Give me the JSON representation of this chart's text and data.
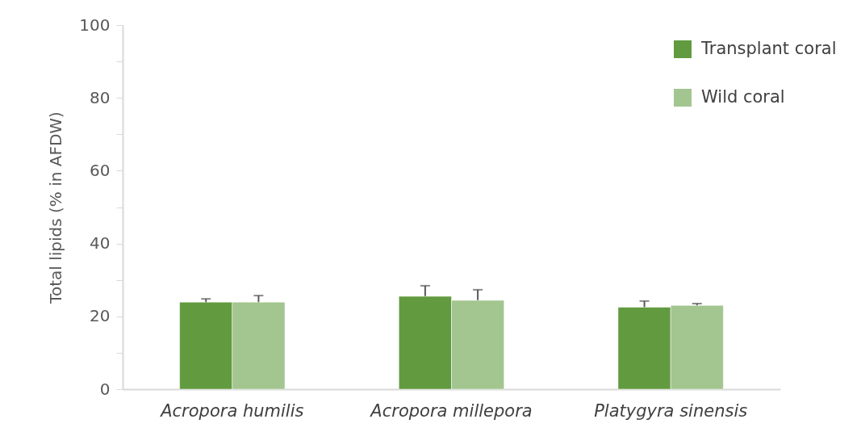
{
  "chart_data": {
    "type": "bar",
    "ylabel": "Total lipids (% in AFDW)",
    "categories": [
      "Acropora humilis",
      "Acropora millepora",
      "Platygyra sinensis"
    ],
    "series": [
      {
        "name": "Transplant coral",
        "color": "#629a3f",
        "values": [
          23.9,
          25.5,
          22.5
        ],
        "errors": [
          0.9,
          2.9,
          1.7
        ]
      },
      {
        "name": "Wild coral",
        "color": "#a3c58f",
        "values": [
          23.9,
          24.4,
          23.0
        ],
        "errors": [
          1.8,
          2.9,
          0.5
        ]
      }
    ],
    "ylim": [
      0,
      100
    ],
    "yticks": [
      0,
      {
        "value": 10,
        "label": null
      },
      20,
      {
        "value": 30,
        "label": null
      },
      40,
      {
        "value": 50,
        "label": null
      },
      60,
      {
        "value": 70,
        "label": null
      },
      80,
      {
        "value": 90,
        "label": null
      },
      100
    ],
    "grid": false,
    "legend": "top right"
  }
}
